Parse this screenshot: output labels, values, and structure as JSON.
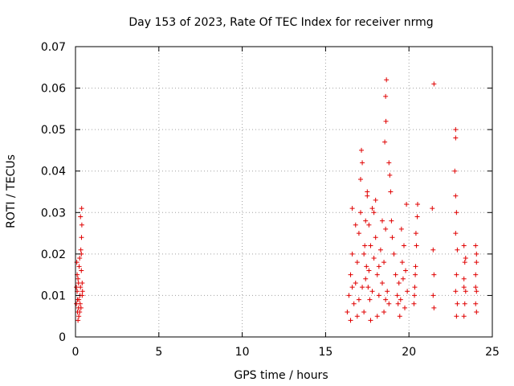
{
  "chart_data": {
    "type": "scatter",
    "title": "Day 153 of 2023, Rate Of TEC Index for receiver nrmg",
    "xlabel": "GPS time / hours",
    "ylabel": "ROTI / TECUs",
    "xlim": [
      0,
      25
    ],
    "ylim": [
      0,
      0.07
    ],
    "x_ticks": [
      0,
      5,
      10,
      15,
      20,
      25
    ],
    "x_tick_labels": [
      "0",
      "5",
      "10",
      "15",
      "20",
      "25"
    ],
    "y_ticks": [
      0,
      0.01,
      0.02,
      0.03,
      0.04,
      0.05,
      0.06,
      0.07
    ],
    "y_tick_labels": [
      "0",
      "0.01",
      "0.02",
      "0.03",
      "0.04",
      "0.05",
      "0.06",
      "0.07"
    ],
    "grid": true,
    "marker": "plus",
    "color": "#e00000",
    "series": [
      {
        "name": "",
        "points": [
          [
            0.05,
            0.008
          ],
          [
            0.1,
            0.011
          ],
          [
            0.15,
            0.014
          ],
          [
            0.2,
            0.009
          ],
          [
            0.25,
            0.006
          ],
          [
            0.3,
            0.012
          ],
          [
            0.35,
            0.016
          ],
          [
            0.4,
            0.01
          ],
          [
            0.08,
            0.018
          ],
          [
            0.12,
            0.006
          ],
          [
            0.18,
            0.013
          ],
          [
            0.22,
            0.017
          ],
          [
            0.28,
            0.008
          ],
          [
            0.32,
            0.021
          ],
          [
            0.36,
            0.024
          ],
          [
            0.38,
            0.027
          ],
          [
            0.37,
            0.031
          ],
          [
            0.3,
            0.029
          ],
          [
            0.15,
            0.004
          ],
          [
            0.2,
            0.005
          ],
          [
            0.05,
            0.012
          ],
          [
            0.1,
            0.015
          ],
          [
            0.25,
            0.019
          ],
          [
            0.33,
            0.007
          ],
          [
            0.4,
            0.013
          ],
          [
            0.42,
            0.011
          ],
          [
            0.27,
            0.01
          ],
          [
            0.35,
            0.02
          ],
          [
            0.12,
            0.009
          ],
          [
            0.18,
            0.007
          ],
          [
            16.3,
            0.006
          ],
          [
            16.4,
            0.01
          ],
          [
            16.5,
            0.015
          ],
          [
            16.6,
            0.02
          ],
          [
            16.7,
            0.008
          ],
          [
            16.8,
            0.013
          ],
          [
            16.9,
            0.018
          ],
          [
            17.0,
            0.025
          ],
          [
            17.1,
            0.03
          ],
          [
            17.2,
            0.012
          ],
          [
            17.3,
            0.02
          ],
          [
            17.4,
            0.028
          ],
          [
            17.5,
            0.034
          ],
          [
            17.6,
            0.016
          ],
          [
            17.7,
            0.022
          ],
          [
            17.8,
            0.031
          ],
          [
            17.9,
            0.019
          ],
          [
            18.0,
            0.024
          ],
          [
            18.1,
            0.015
          ],
          [
            18.2,
            0.01
          ],
          [
            18.3,
            0.021
          ],
          [
            18.4,
            0.013
          ],
          [
            18.5,
            0.018
          ],
          [
            18.6,
            0.026
          ],
          [
            18.7,
            0.011
          ],
          [
            18.8,
            0.008
          ],
          [
            16.5,
            0.004
          ],
          [
            16.9,
            0.005
          ],
          [
            17.3,
            0.006
          ],
          [
            17.7,
            0.004
          ],
          [
            18.1,
            0.005
          ],
          [
            18.5,
            0.006
          ],
          [
            16.6,
            0.012
          ],
          [
            17.0,
            0.009
          ],
          [
            17.4,
            0.014
          ],
          [
            17.8,
            0.011
          ],
          [
            18.2,
            0.017
          ],
          [
            18.6,
            0.009
          ],
          [
            17.1,
            0.038
          ],
          [
            17.15,
            0.045
          ],
          [
            17.2,
            0.042
          ],
          [
            17.5,
            0.035
          ],
          [
            17.9,
            0.03
          ],
          [
            18.4,
            0.028
          ],
          [
            18.0,
            0.033
          ],
          [
            16.8,
            0.027
          ],
          [
            16.6,
            0.031
          ],
          [
            17.6,
            0.027
          ],
          [
            17.35,
            0.022
          ],
          [
            17.45,
            0.017
          ],
          [
            17.55,
            0.012
          ],
          [
            17.65,
            0.009
          ],
          [
            18.65,
            0.062
          ],
          [
            18.6,
            0.058
          ],
          [
            18.62,
            0.052
          ],
          [
            18.55,
            0.047
          ],
          [
            18.8,
            0.042
          ],
          [
            18.85,
            0.039
          ],
          [
            18.9,
            0.035
          ],
          [
            18.95,
            0.028
          ],
          [
            19.0,
            0.024
          ],
          [
            19.1,
            0.02
          ],
          [
            19.2,
            0.015
          ],
          [
            19.3,
            0.01
          ],
          [
            19.4,
            0.013
          ],
          [
            19.5,
            0.009
          ],
          [
            19.6,
            0.018
          ],
          [
            19.7,
            0.022
          ],
          [
            19.8,
            0.016
          ],
          [
            19.9,
            0.011
          ],
          [
            19.55,
            0.026
          ],
          [
            19.65,
            0.014
          ],
          [
            19.75,
            0.007
          ],
          [
            19.85,
            0.032
          ],
          [
            19.45,
            0.005
          ],
          [
            19.35,
            0.008
          ],
          [
            20.3,
            0.008
          ],
          [
            20.35,
            0.012
          ],
          [
            20.4,
            0.017
          ],
          [
            20.45,
            0.022
          ],
          [
            20.5,
            0.029
          ],
          [
            20.52,
            0.032
          ],
          [
            20.42,
            0.025
          ],
          [
            20.38,
            0.015
          ],
          [
            20.33,
            0.01
          ],
          [
            21.4,
            0.031
          ],
          [
            21.45,
            0.021
          ],
          [
            21.5,
            0.015
          ],
          [
            21.45,
            0.01
          ],
          [
            21.5,
            0.007
          ],
          [
            21.5,
            0.061
          ],
          [
            22.8,
            0.05
          ],
          [
            22.8,
            0.048
          ],
          [
            22.75,
            0.04
          ],
          [
            22.8,
            0.034
          ],
          [
            22.85,
            0.03
          ],
          [
            22.8,
            0.025
          ],
          [
            22.9,
            0.021
          ],
          [
            22.85,
            0.015
          ],
          [
            22.8,
            0.011
          ],
          [
            22.9,
            0.008
          ],
          [
            22.85,
            0.005
          ],
          [
            23.3,
            0.022
          ],
          [
            23.35,
            0.018
          ],
          [
            23.3,
            0.014
          ],
          [
            23.4,
            0.011
          ],
          [
            23.35,
            0.008
          ],
          [
            23.3,
            0.005
          ],
          [
            23.4,
            0.019
          ],
          [
            23.3,
            0.012
          ],
          [
            24.0,
            0.022
          ],
          [
            24.05,
            0.018
          ],
          [
            24.0,
            0.015
          ],
          [
            24.05,
            0.011
          ],
          [
            24.0,
            0.008
          ],
          [
            24.05,
            0.006
          ],
          [
            24.0,
            0.012
          ],
          [
            24.05,
            0.02
          ]
        ]
      }
    ]
  }
}
